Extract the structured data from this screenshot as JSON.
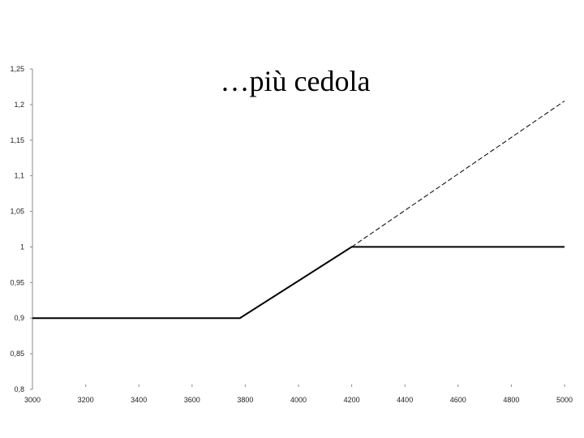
{
  "chart_data": {
    "type": "line",
    "title": "…più cedola",
    "xlabel": "",
    "ylabel": "",
    "xlim": [
      3000,
      5000
    ],
    "ylim": [
      0.8,
      1.25
    ],
    "x_ticks": [
      3000,
      3200,
      3400,
      3600,
      3800,
      4000,
      4200,
      4400,
      4600,
      4800,
      5000
    ],
    "y_ticks": [
      0.8,
      0.85,
      0.9,
      0.95,
      1,
      1.05,
      1.1,
      1.15,
      1.2,
      1.25
    ],
    "y_tick_labels": [
      "0,8",
      "0,85",
      "0,9",
      "0,95",
      "1",
      "1,05",
      "1,1",
      "1,15",
      "1,2",
      "1,25"
    ],
    "grid": false,
    "legend": "none",
    "series": [
      {
        "style": "solid",
        "color": "#000000",
        "x": [
          3000,
          3780,
          4200,
          5000
        ],
        "y": [
          0.9,
          0.9,
          1.0,
          1.0
        ]
      },
      {
        "style": "dashed",
        "color": "#000000",
        "x": [
          4200,
          5000
        ],
        "y": [
          1.0,
          1.205
        ]
      }
    ]
  }
}
